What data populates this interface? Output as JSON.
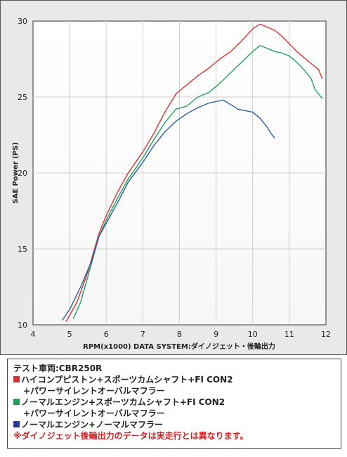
{
  "chart_data": {
    "type": "line",
    "xlabel": "RPM(x1000) DATA SYSTEM:ダイノジェット・後輪出力",
    "ylabel": "SAE Power (PS)",
    "xlim": [
      4,
      12
    ],
    "ylim": [
      10,
      30
    ],
    "x_ticks": [
      "4",
      "5",
      "6",
      "7",
      "8",
      "9",
      "10",
      "11",
      "12"
    ],
    "y_ticks": [
      "10",
      "15",
      "20",
      "25",
      "30"
    ],
    "grid": true,
    "series": [
      {
        "color": "#e03030",
        "points": [
          [
            4.9,
            10.2
          ],
          [
            5.2,
            11.5
          ],
          [
            5.5,
            13.5
          ],
          [
            5.8,
            16.0
          ],
          [
            6.0,
            17.2
          ],
          [
            6.3,
            18.7
          ],
          [
            6.6,
            20.0
          ],
          [
            7.0,
            21.4
          ],
          [
            7.3,
            22.6
          ],
          [
            7.6,
            24.0
          ],
          [
            7.9,
            25.2
          ],
          [
            8.2,
            25.8
          ],
          [
            8.5,
            26.4
          ],
          [
            8.8,
            26.9
          ],
          [
            9.1,
            27.5
          ],
          [
            9.4,
            28.0
          ],
          [
            9.7,
            28.7
          ],
          [
            10.0,
            29.5
          ],
          [
            10.2,
            29.8
          ],
          [
            10.4,
            29.6
          ],
          [
            10.6,
            29.4
          ],
          [
            10.8,
            29.0
          ],
          [
            11.0,
            28.5
          ],
          [
            11.2,
            28.0
          ],
          [
            11.4,
            27.6
          ],
          [
            11.6,
            27.2
          ],
          [
            11.8,
            26.8
          ],
          [
            11.9,
            26.2
          ]
        ]
      },
      {
        "color": "#22a05a",
        "points": [
          [
            5.1,
            10.4
          ],
          [
            5.3,
            11.5
          ],
          [
            5.5,
            13.2
          ],
          [
            5.8,
            15.8
          ],
          [
            6.0,
            16.9
          ],
          [
            6.3,
            18.3
          ],
          [
            6.6,
            19.6
          ],
          [
            7.0,
            21.0
          ],
          [
            7.3,
            22.2
          ],
          [
            7.6,
            23.3
          ],
          [
            7.9,
            24.2
          ],
          [
            8.2,
            24.4
          ],
          [
            8.5,
            25.0
          ],
          [
            8.8,
            25.3
          ],
          [
            9.1,
            25.9
          ],
          [
            9.4,
            26.6
          ],
          [
            9.7,
            27.3
          ],
          [
            10.0,
            28.0
          ],
          [
            10.2,
            28.4
          ],
          [
            10.4,
            28.2
          ],
          [
            10.6,
            28.0
          ],
          [
            10.8,
            27.9
          ],
          [
            11.0,
            27.7
          ],
          [
            11.2,
            27.3
          ],
          [
            11.4,
            26.8
          ],
          [
            11.6,
            26.2
          ],
          [
            11.7,
            25.5
          ],
          [
            11.9,
            24.9
          ]
        ]
      },
      {
        "color": "#2a5ea0",
        "points": [
          [
            4.8,
            10.3
          ],
          [
            5.0,
            11.0
          ],
          [
            5.3,
            12.5
          ],
          [
            5.6,
            14.2
          ],
          [
            5.8,
            15.8
          ],
          [
            6.0,
            16.7
          ],
          [
            6.3,
            18.0
          ],
          [
            6.6,
            19.4
          ],
          [
            7.0,
            20.7
          ],
          [
            7.3,
            21.8
          ],
          [
            7.6,
            22.7
          ],
          [
            7.9,
            23.4
          ],
          [
            8.2,
            23.9
          ],
          [
            8.5,
            24.3
          ],
          [
            8.8,
            24.6
          ],
          [
            9.0,
            24.7
          ],
          [
            9.2,
            24.8
          ],
          [
            9.4,
            24.5
          ],
          [
            9.6,
            24.2
          ],
          [
            9.8,
            24.1
          ],
          [
            10.0,
            24.0
          ],
          [
            10.2,
            23.6
          ],
          [
            10.4,
            23.0
          ],
          [
            10.5,
            22.6
          ],
          [
            10.6,
            22.3
          ]
        ]
      }
    ]
  },
  "legend": {
    "title": "テスト車両:CBR250R",
    "entries": [
      {
        "color": "#e03030",
        "line1": "ハイコンプピストン+スポーツカムシャフト+FI CON2",
        "line2": "+パワーサイレントオーバルマフラー"
      },
      {
        "color": "#22a05a",
        "line1": "ノーマルエンジン+スポーツカムシャフト+FI CON2",
        "line2": "+パワーサイレントオーバルマフラー"
      },
      {
        "color": "#2a3a9a",
        "line1": "ノーマルエンジン+ノーマルマフラー",
        "line2": ""
      }
    ],
    "note": "※ダイノジェット後輪出力のデータは実走行とは異なります。"
  }
}
